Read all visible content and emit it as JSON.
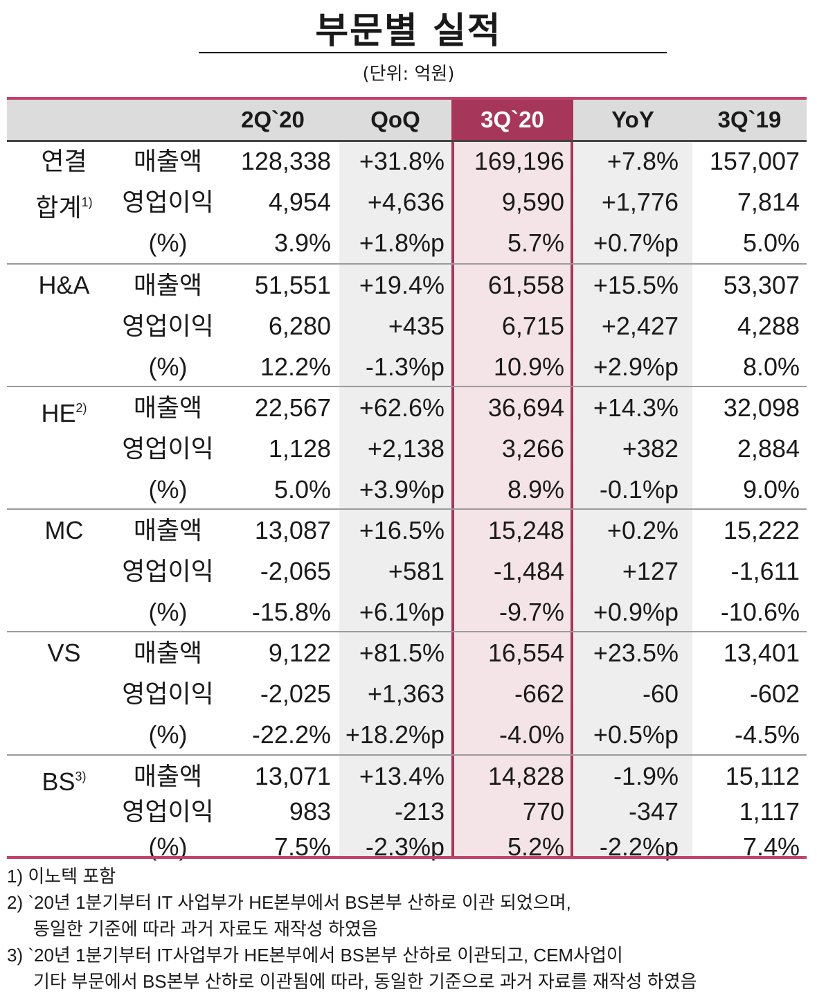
{
  "title": "부문별 실적",
  "unit": "(단위: 억원)",
  "columns": [
    "2Q`20",
    "QoQ",
    "3Q`20",
    "YoY",
    "3Q`19"
  ],
  "segments": [
    {
      "name": "연결",
      "name2": "합계",
      "sup": "1)",
      "rows": [
        {
          "metric": "매출액",
          "values": [
            "128,338",
            "+31.8%",
            "169,196",
            "+7.8%",
            "157,007"
          ]
        },
        {
          "metric": "영업이익",
          "values": [
            "4,954",
            "+4,636",
            "9,590",
            "+1,776",
            "7,814"
          ]
        },
        {
          "metric": "(%)",
          "values": [
            "3.9%",
            "+1.8%p",
            "5.7%",
            "+0.7%p",
            "5.0%"
          ]
        }
      ]
    },
    {
      "name": "H&A",
      "name2": "",
      "sup": "",
      "rows": [
        {
          "metric": "매출액",
          "values": [
            "51,551",
            "+19.4%",
            "61,558",
            "+15.5%",
            "53,307"
          ]
        },
        {
          "metric": "영업이익",
          "values": [
            "6,280",
            "+435",
            "6,715",
            "+2,427",
            "4,288"
          ]
        },
        {
          "metric": "(%)",
          "values": [
            "12.2%",
            "-1.3%p",
            "10.9%",
            "+2.9%p",
            "8.0%"
          ]
        }
      ]
    },
    {
      "name": "HE",
      "name2": "",
      "sup": "2)",
      "rows": [
        {
          "metric": "매출액",
          "values": [
            "22,567",
            "+62.6%",
            "36,694",
            "+14.3%",
            "32,098"
          ]
        },
        {
          "metric": "영업이익",
          "values": [
            "1,128",
            "+2,138",
            "3,266",
            "+382",
            "2,884"
          ]
        },
        {
          "metric": "(%)",
          "values": [
            "5.0%",
            "+3.9%p",
            "8.9%",
            "-0.1%p",
            "9.0%"
          ]
        }
      ]
    },
    {
      "name": "MC",
      "name2": "",
      "sup": "",
      "rows": [
        {
          "metric": "매출액",
          "values": [
            "13,087",
            "+16.5%",
            "15,248",
            "+0.2%",
            "15,222"
          ]
        },
        {
          "metric": "영업이익",
          "values": [
            "-2,065",
            "+581",
            "-1,484",
            "+127",
            "-1,611"
          ]
        },
        {
          "metric": "(%)",
          "values": [
            "-15.8%",
            "+6.1%p",
            "-9.7%",
            "+0.9%p",
            "-10.6%"
          ]
        }
      ]
    },
    {
      "name": "VS",
      "name2": "",
      "sup": "",
      "rows": [
        {
          "metric": "매출액",
          "values": [
            "9,122",
            "+81.5%",
            "16,554",
            "+23.5%",
            "13,401"
          ]
        },
        {
          "metric": "영업이익",
          "values": [
            "-2,025",
            "+1,363",
            "-662",
            "-60",
            "-602"
          ]
        },
        {
          "metric": "(%)",
          "values": [
            "-22.2%",
            "+18.2%p",
            "-4.0%",
            "+0.5%p",
            "-4.5%"
          ]
        }
      ]
    },
    {
      "name": "BS",
      "name2": "",
      "sup": "3)",
      "rows": [
        {
          "metric": "매출액",
          "values": [
            "13,071",
            "+13.4%",
            "14,828",
            "-1.9%",
            "15,112"
          ]
        },
        {
          "metric": "영업이익",
          "values": [
            "983",
            "-213",
            "770",
            "-347",
            "1,117"
          ]
        },
        {
          "metric": "(%)",
          "values": [
            "7.5%",
            "-2.3%p",
            "5.2%",
            "-2.2%p",
            "7.4%"
          ]
        }
      ]
    }
  ],
  "footnotes": [
    "1) 이노텍 포함",
    "2) `20년 1분기부터 IT 사업부가 HE본부에서 BS본부 산하로 이관 되었으며,",
    "동일한 기준에 따라 과거 자료도 재작성 하였음",
    "3) `20년 1분기부터 IT사업부가 HE본부에서 BS본부 산하로 이관되고, CEM사업이",
    "기타 부문에서 BS본부 산하로 이관됨에 따라, 동일한 기준으로 과거 자료를 재작성 하였음"
  ]
}
